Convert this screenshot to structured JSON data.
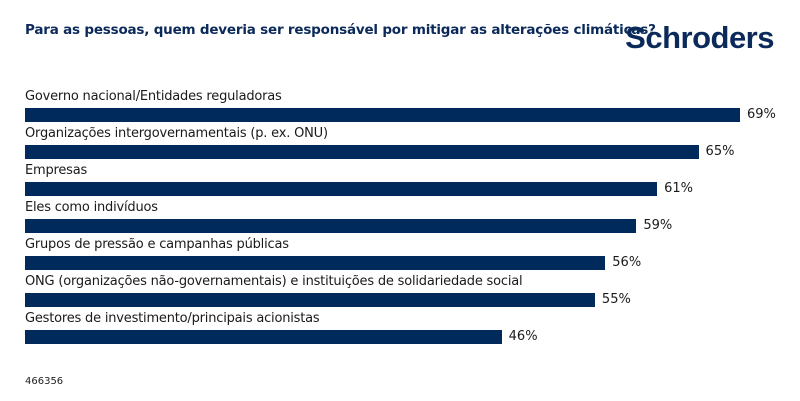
{
  "header": {
    "title": "Para as pessoas, quem deveria ser responsável por mitigar as alterações climáticas?",
    "logo": "Schroders"
  },
  "footer": {
    "code": "466356"
  },
  "chart_data": {
    "type": "bar",
    "orientation": "horizontal",
    "title": "Para as pessoas, quem deveria ser responsável por mitigar as alterações climáticas?",
    "categories": [
      "Governo nacional/Entidades reguladoras",
      "Organizações intergovernamentais (p. ex. ONU)",
      "Empresas",
      "Eles como indivíduos",
      "Grupos de pressão e campanhas públicas",
      "ONG (organizações não-governamentais) e instituições de solidariedade social",
      "Gestores de investimento/principais acionistas"
    ],
    "values": [
      69,
      65,
      61,
      59,
      56,
      55,
      46
    ],
    "value_labels": [
      "69%",
      "65%",
      "61%",
      "59%",
      "56%",
      "55%",
      "46%"
    ],
    "xlim": [
      0,
      69
    ],
    "color": "#002a5c"
  }
}
